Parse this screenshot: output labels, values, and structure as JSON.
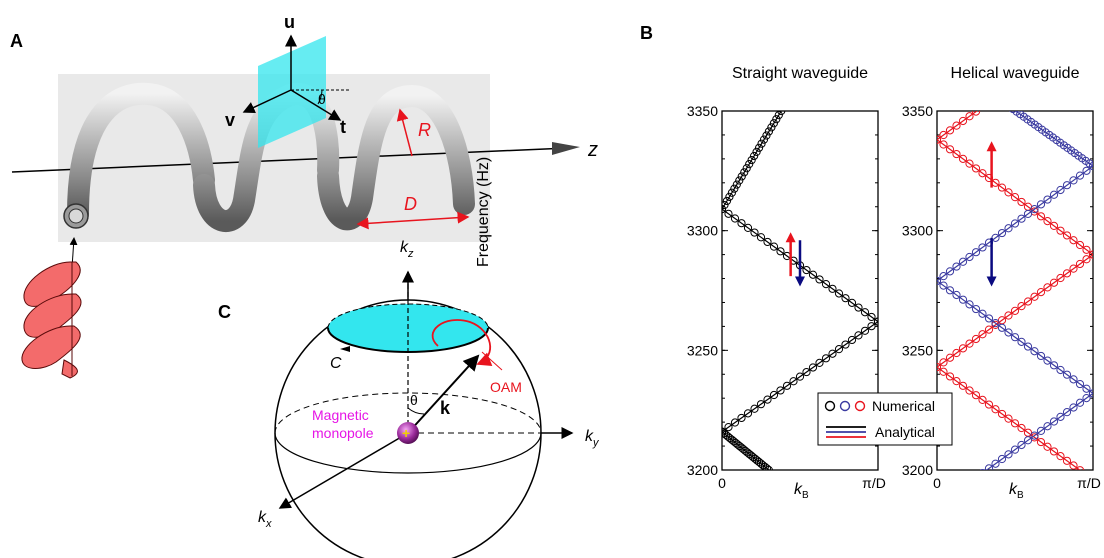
{
  "panels": {
    "A": {
      "label": "A",
      "axis_labels": {
        "u": "u",
        "v": "v",
        "t": "t",
        "theta": "θ",
        "z": "z",
        "R": "R",
        "D": "D"
      }
    },
    "B": {
      "label": "B"
    },
    "C": {
      "label": "C",
      "labels": {
        "kz": "k",
        "kz_sub": "z",
        "ky": "k",
        "ky_sub": "y",
        "kx": "k",
        "kx_sub": "x",
        "k": "k",
        "theta": "θ",
        "C": "C",
        "OAM": "OAM",
        "monopole_line1": "Magnetic",
        "monopole_line2": "monopole"
      },
      "colors": {
        "cap": "#33e6ee",
        "oam": "#e8141e",
        "monopole": "#e614e6"
      }
    }
  },
  "chart_data": [
    {
      "type": "scatter",
      "title": "Straight waveguide",
      "xlabel": "k",
      "xlabel_sub": "B",
      "ylabel": "Frequency (Hz)",
      "xlim": [
        0,
        1
      ],
      "ylim": [
        3200,
        3350
      ],
      "xticklabels": [
        "0",
        "π/D"
      ],
      "yticks": [
        3200,
        3250,
        3300,
        3350
      ],
      "series": [
        {
          "marker": "o",
          "color": "#000000",
          "lines": [
            [
              [
                0,
                3309
              ],
              [
                1,
                3262
              ]
            ],
            [
              [
                0.38,
                3350
              ],
              [
                0,
                3309
              ]
            ],
            [
              [
                1,
                3262
              ],
              [
                0,
                3216
              ]
            ],
            [
              [
                0,
                3216
              ],
              [
                0.3,
                3200
              ]
            ]
          ]
        }
      ],
      "arrows": [
        {
          "direction": "up",
          "color": "#e8141e",
          "x": 0.44,
          "y": [
            3281,
            3296
          ]
        },
        {
          "direction": "down",
          "color": "#0a0a80",
          "x": 0.5,
          "y": [
            3296,
            3280
          ]
        }
      ],
      "legend": {
        "placement": "lower-right",
        "markers_label": "Numerical",
        "lines_label": "Analytical",
        "colors": [
          "#000000",
          "#3a3aa0",
          "#e8141e"
        ]
      }
    },
    {
      "type": "scatter",
      "title": "Helical waveguide",
      "xlabel": "k",
      "xlabel_sub": "B",
      "ylabel": "",
      "xlim": [
        0,
        1
      ],
      "ylim": [
        3200,
        3350
      ],
      "xticklabels": [
        "0",
        "π/D"
      ],
      "yticks": [
        3200,
        3250,
        3300,
        3350
      ],
      "series": [
        {
          "marker": "o",
          "color": "#e8141e",
          "lines": [
            [
              [
                0,
                3338
              ],
              [
                1,
                3290
              ]
            ],
            [
              [
                1,
                3290
              ],
              [
                0,
                3243
              ]
            ],
            [
              [
                0,
                3243
              ],
              [
                1,
                3196
              ]
            ],
            [
              [
                1,
                3385
              ],
              [
                0,
                3338
              ]
            ]
          ]
        },
        {
          "marker": "o",
          "color": "#3a3aa0",
          "lines": [
            [
              [
                0,
                3279
              ],
              [
                1,
                3327
              ]
            ],
            [
              [
                1,
                3327
              ],
              [
                0.44,
                3353
              ]
            ],
            [
              [
                0,
                3279
              ],
              [
                1,
                3232
              ]
            ],
            [
              [
                1,
                3232
              ],
              [
                0,
                3185
              ]
            ]
          ]
        }
      ],
      "arrows": [
        {
          "direction": "up",
          "color": "#e8141e",
          "x": 0.35,
          "y": [
            3318,
            3334
          ]
        },
        {
          "direction": "down",
          "color": "#0a0a80",
          "x": 0.35,
          "y": [
            3297,
            3280
          ]
        }
      ]
    }
  ]
}
